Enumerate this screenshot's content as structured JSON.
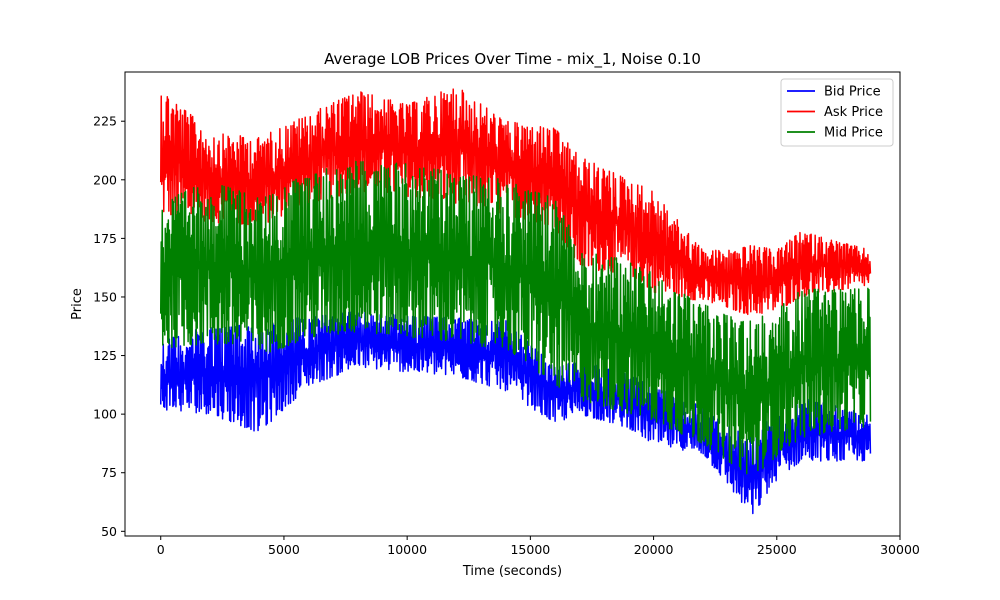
{
  "chart_data": {
    "type": "line",
    "title": "Average LOB Prices Over Time - mix_1, Noise 0.10",
    "xlabel": "Time (seconds)",
    "ylabel": "Price",
    "xlim": [
      -1450,
      30000
    ],
    "ylim": [
      48,
      246
    ],
    "xticks": [
      0,
      5000,
      10000,
      15000,
      20000,
      25000,
      30000
    ],
    "yticks": [
      50,
      75,
      100,
      125,
      150,
      175,
      200,
      225
    ],
    "grid": false,
    "legend_position": "top-right",
    "series": [
      {
        "name": "Bid Price",
        "color": "#0000ff",
        "x": [
          0,
          2000,
          4000,
          6000,
          8000,
          10000,
          12000,
          14000,
          16000,
          17000,
          19000,
          20000,
          22000,
          23000,
          24000,
          25000,
          26000,
          28800
        ],
        "min": [
          102,
          100,
          92,
          112,
          120,
          118,
          116,
          110,
          96,
          100,
          94,
          87,
          83,
          70,
          56,
          72,
          80,
          80
        ],
        "max": [
          131,
          138,
          138,
          142,
          144,
          142,
          141,
          140,
          120,
          123,
          117,
          112,
          103,
          95,
          90,
          102,
          107,
          100
        ]
      },
      {
        "name": "Ask Price",
        "color": "#ff0000",
        "x": [
          0,
          2000,
          4000,
          6000,
          8000,
          10000,
          12000,
          14000,
          16000,
          17000,
          19000,
          20000,
          22000,
          23000,
          24000,
          25000,
          26000,
          28800
        ],
        "min": [
          185,
          182,
          180,
          190,
          195,
          193,
          190,
          185,
          180,
          162,
          160,
          152,
          148,
          145,
          142,
          144,
          150,
          155
        ],
        "max": [
          240,
          220,
          218,
          228,
          238,
          232,
          240,
          225,
          222,
          210,
          200,
          195,
          170,
          170,
          172,
          170,
          178,
          170
        ]
      },
      {
        "name": "Mid Price",
        "color": "#008000",
        "x": [
          0,
          2000,
          4000,
          6000,
          8000,
          10000,
          12000,
          14000,
          16000,
          17000,
          19000,
          20000,
          22000,
          23000,
          24000,
          25000,
          26000,
          28800
        ],
        "min": [
          128,
          130,
          125,
          132,
          135,
          133,
          130,
          128,
          112,
          106,
          100,
          97,
          87,
          80,
          73,
          82,
          90,
          95
        ],
        "max": [
          190,
          200,
          192,
          203,
          208,
          207,
          203,
          200,
          192,
          172,
          165,
          160,
          147,
          142,
          140,
          145,
          153,
          155
        ]
      }
    ]
  }
}
